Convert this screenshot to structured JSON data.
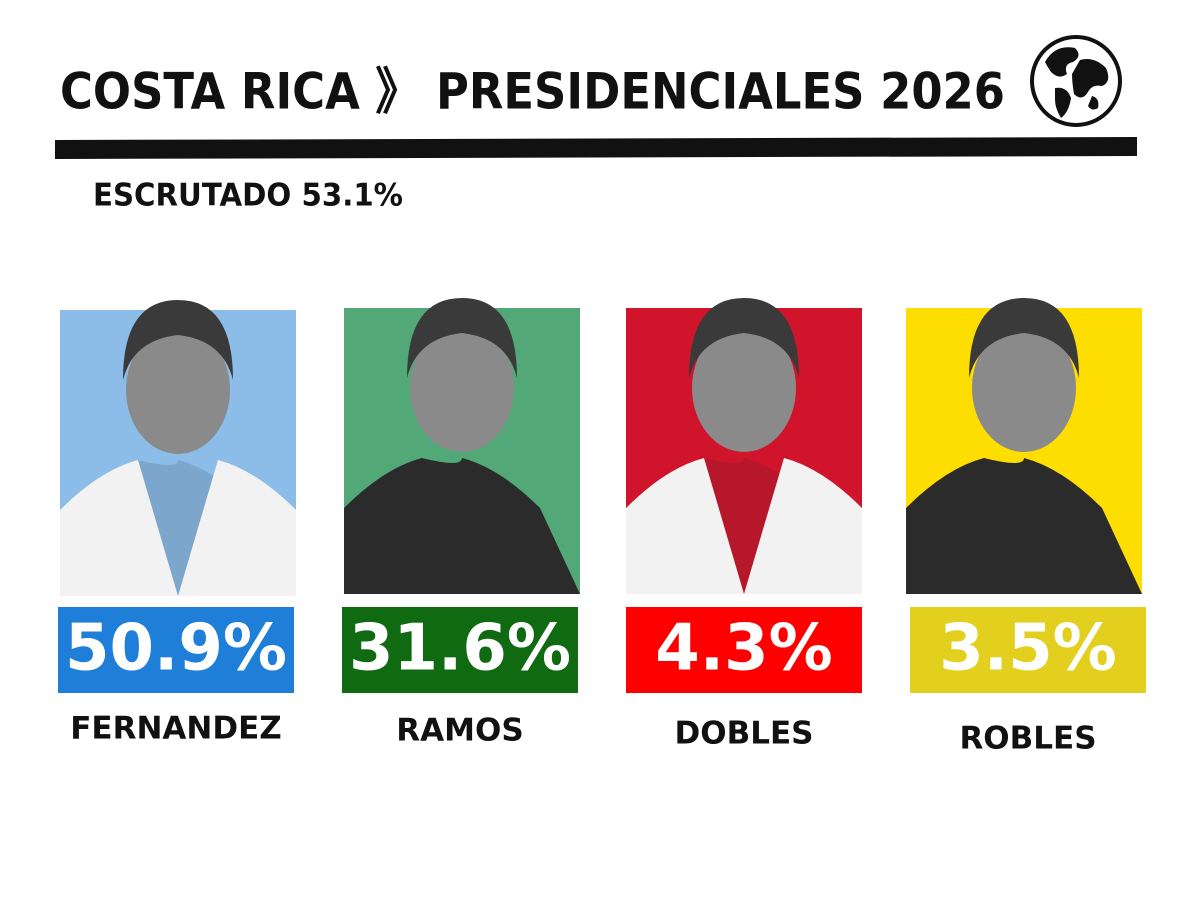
{
  "header": {
    "title": "COSTA RICA 》 PRESIDENCIALES 2026",
    "subtitle": "ESCRUTADO 53.1%"
  },
  "candidates": [
    {
      "name": "FERNANDEZ",
      "result": "50.9%",
      "photo_color": "#8bbde8",
      "label_color": "#1f7fd8"
    },
    {
      "name": "RAMOS",
      "result": "31.6%",
      "photo_color": "#52a877",
      "label_color": "#0f6a12"
    },
    {
      "name": "DOBLES",
      "result": "4.3%",
      "photo_color": "#d0142c",
      "label_color": "#ff0000"
    },
    {
      "name": "ROBLES",
      "result": "3.5%",
      "photo_color": "#fedd00",
      "label_color": "#e3cf1e"
    }
  ]
}
